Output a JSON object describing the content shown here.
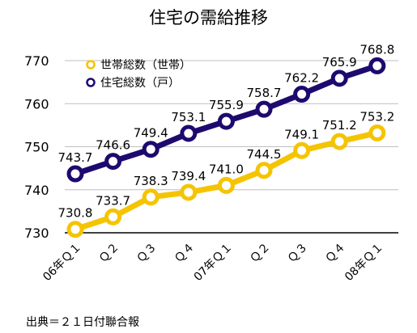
{
  "chart_data": {
    "type": "line",
    "title": "住宅の需給推移",
    "categories": [
      "06年Ｑ１",
      "Ｑ２",
      "Ｑ３",
      "Ｑ４",
      "07年Ｑ１",
      "Ｑ２",
      "Ｑ３",
      "Ｑ４",
      "08年Ｑ１"
    ],
    "series": [
      {
        "name": "世帯総数（世帯）",
        "color": "#F5C400",
        "values": [
          730.8,
          733.7,
          738.3,
          739.4,
          741.0,
          744.5,
          749.1,
          751.2,
          753.2
        ],
        "labels": [
          "730.8",
          "733.7",
          "738.3",
          "739.4",
          "741.0",
          "744.5",
          "749.1",
          "751.2",
          "753.2"
        ]
      },
      {
        "name": "住宅総数（戸）",
        "color": "#1E0A6E",
        "values": [
          743.7,
          746.6,
          749.4,
          753.1,
          755.9,
          758.7,
          762.2,
          765.9,
          768.8
        ],
        "labels": [
          "743.7",
          "746.6",
          "749.4",
          "753.1",
          "755.9",
          "758.7",
          "762.2",
          "765.9",
          "768.8"
        ]
      }
    ],
    "yticks": [
      "730",
      "740",
      "750",
      "760",
      "770"
    ],
    "ylim": [
      730,
      770
    ],
    "grid": true,
    "legend_position": "top-left",
    "xlabel": "",
    "ylabel": ""
  },
  "source": "出典＝２１日付聯合報"
}
